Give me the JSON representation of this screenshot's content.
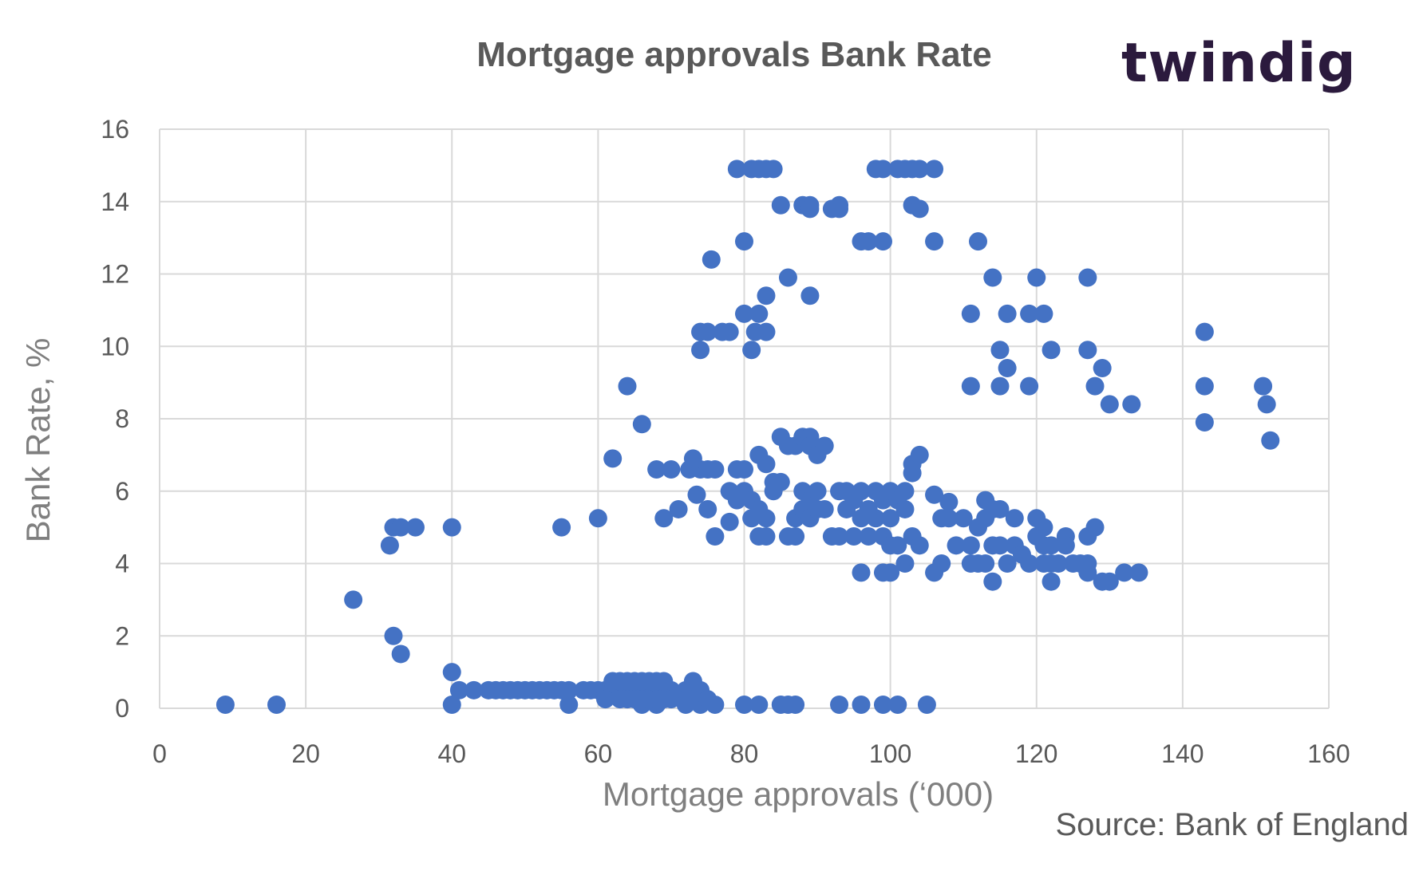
{
  "logo": {
    "text": "twindig"
  },
  "source": "Source: Bank of England",
  "colors": {
    "points": "#4472c4",
    "grid": "#d9d9d9",
    "text": "#595959",
    "logo_accent": "#f0932b"
  },
  "chart_data": {
    "type": "scatter",
    "title": "Mortgage approvals Bank Rate",
    "xlabel": "Mortgage approvals (‘000)",
    "ylabel": "Bank Rate, %",
    "xlim": [
      0,
      160
    ],
    "ylim": [
      0,
      16
    ],
    "xticks": [
      0,
      20,
      40,
      60,
      80,
      100,
      120,
      140,
      160
    ],
    "yticks": [
      0,
      2,
      4,
      6,
      8,
      10,
      12,
      14,
      16
    ],
    "grid": true,
    "series": [
      {
        "points": [
          [
            9,
            0.1
          ],
          [
            16,
            0.1
          ],
          [
            40,
            0.1
          ],
          [
            56,
            0.1
          ],
          [
            66,
            0.1
          ],
          [
            68,
            0.1
          ],
          [
            72,
            0.1
          ],
          [
            74,
            0.1
          ],
          [
            76,
            0.1
          ],
          [
            80,
            0.1
          ],
          [
            82,
            0.1
          ],
          [
            85,
            0.1
          ],
          [
            86,
            0.1
          ],
          [
            87,
            0.1
          ],
          [
            93,
            0.1
          ],
          [
            96,
            0.1
          ],
          [
            99,
            0.1
          ],
          [
            101,
            0.1
          ],
          [
            105,
            0.1
          ],
          [
            40,
            1
          ],
          [
            33,
            1.5
          ],
          [
            32,
            2
          ],
          [
            26.5,
            3
          ],
          [
            31.5,
            4.5
          ],
          [
            32,
            5
          ],
          [
            33,
            5
          ],
          [
            35,
            5
          ],
          [
            40,
            5
          ],
          [
            55,
            5
          ],
          [
            60,
            5.25
          ],
          [
            41,
            0.5
          ],
          [
            43,
            0.5
          ],
          [
            45,
            0.5
          ],
          [
            46,
            0.5
          ],
          [
            47,
            0.5
          ],
          [
            48,
            0.5
          ],
          [
            49,
            0.5
          ],
          [
            50,
            0.5
          ],
          [
            51,
            0.5
          ],
          [
            52,
            0.5
          ],
          [
            53,
            0.5
          ],
          [
            54,
            0.5
          ],
          [
            55,
            0.5
          ],
          [
            56,
            0.5
          ],
          [
            58,
            0.5
          ],
          [
            59,
            0.5
          ],
          [
            60,
            0.5
          ],
          [
            61,
            0.5
          ],
          [
            62,
            0.5
          ],
          [
            63,
            0.5
          ],
          [
            64,
            0.5
          ],
          [
            65,
            0.5
          ],
          [
            66,
            0.5
          ],
          [
            67,
            0.5
          ],
          [
            68,
            0.5
          ],
          [
            69,
            0.5
          ],
          [
            70,
            0.5
          ],
          [
            72,
            0.5
          ],
          [
            74,
            0.5
          ],
          [
            62,
            0.75
          ],
          [
            63,
            0.75
          ],
          [
            64,
            0.75
          ],
          [
            65,
            0.75
          ],
          [
            66,
            0.75
          ],
          [
            67,
            0.75
          ],
          [
            68,
            0.75
          ],
          [
            69,
            0.75
          ],
          [
            73,
            0.75
          ],
          [
            61,
            0.25
          ],
          [
            63,
            0.25
          ],
          [
            64,
            0.25
          ],
          [
            65,
            0.25
          ],
          [
            66,
            0.25
          ],
          [
            67,
            0.25
          ],
          [
            68,
            0.25
          ],
          [
            69,
            0.25
          ],
          [
            70,
            0.25
          ],
          [
            72,
            0.25
          ],
          [
            74,
            0.25
          ],
          [
            75,
            0.25
          ],
          [
            64,
            8.9
          ],
          [
            66,
            7.85
          ],
          [
            62,
            6.9
          ],
          [
            68,
            6.6
          ],
          [
            70,
            6.6
          ],
          [
            72.5,
            6.6
          ],
          [
            73,
            6.9
          ],
          [
            74,
            6.6
          ],
          [
            75,
            6.6
          ],
          [
            76,
            6.6
          ],
          [
            71,
            5.5
          ],
          [
            69,
            5.25
          ],
          [
            73.5,
            5.9
          ],
          [
            75,
            5.5
          ],
          [
            76,
            4.75
          ],
          [
            78,
            5.15
          ],
          [
            78,
            6
          ],
          [
            79,
            5.75
          ],
          [
            79,
            6.6
          ],
          [
            80,
            6.6
          ],
          [
            80,
            6
          ],
          [
            81,
            5.75
          ],
          [
            81,
            5.25
          ],
          [
            82,
            4.75
          ],
          [
            82,
            5.5
          ],
          [
            82,
            7
          ],
          [
            83,
            6.75
          ],
          [
            83,
            4.75
          ],
          [
            83,
            5.25
          ],
          [
            84,
            6
          ],
          [
            84,
            6.25
          ],
          [
            85,
            6.25
          ],
          [
            86,
            4.75
          ],
          [
            87,
            4.75
          ],
          [
            87,
            5.25
          ],
          [
            88,
            5.5
          ],
          [
            88,
            6
          ],
          [
            89,
            5.75
          ],
          [
            89,
            5.25
          ],
          [
            90,
            5.5
          ],
          [
            90,
            6
          ],
          [
            91,
            5.5
          ],
          [
            92,
            4.75
          ],
          [
            93,
            4.75
          ],
          [
            93,
            6
          ],
          [
            94,
            5.5
          ],
          [
            94,
            6
          ],
          [
            95,
            4.75
          ],
          [
            95,
            5.75
          ],
          [
            96,
            6
          ],
          [
            96,
            5.25
          ],
          [
            97,
            4.75
          ],
          [
            97,
            5.5
          ],
          [
            98,
            6
          ],
          [
            98,
            5.25
          ],
          [
            99,
            4.75
          ],
          [
            99,
            5.75
          ],
          [
            100,
            6
          ],
          [
            100,
            5.25
          ],
          [
            100,
            4.5
          ],
          [
            101,
            4.5
          ],
          [
            101,
            5.75
          ],
          [
            102,
            6
          ],
          [
            102,
            5.5
          ],
          [
            103,
            6.5
          ],
          [
            103,
            6.75
          ],
          [
            103,
            4.75
          ],
          [
            104,
            7
          ],
          [
            104,
            4.5
          ],
          [
            102,
            4
          ],
          [
            106,
            5.9
          ],
          [
            107,
            5.25
          ],
          [
            108,
            5.25
          ],
          [
            108,
            5.7
          ],
          [
            110,
            5.25
          ],
          [
            109,
            4.5
          ],
          [
            111,
            4.5
          ],
          [
            112,
            5
          ],
          [
            113,
            5.25
          ],
          [
            113,
            5.75
          ],
          [
            114,
            5.5
          ],
          [
            115,
            5.5
          ],
          [
            111,
            4
          ],
          [
            112,
            4
          ],
          [
            113,
            4
          ],
          [
            114,
            4.5
          ],
          [
            115,
            4.5
          ],
          [
            116,
            4
          ],
          [
            117,
            5.25
          ],
          [
            117,
            4.5
          ],
          [
            118,
            4.25
          ],
          [
            119,
            4
          ],
          [
            120,
            5.25
          ],
          [
            120,
            4.75
          ],
          [
            121,
            4
          ],
          [
            121,
            4.5
          ],
          [
            122,
            4.5
          ],
          [
            121,
            5
          ],
          [
            122,
            4
          ],
          [
            123,
            4
          ],
          [
            124,
            4.75
          ],
          [
            124,
            4.5
          ],
          [
            125,
            4
          ],
          [
            126,
            4
          ],
          [
            127,
            4
          ],
          [
            127,
            4.75
          ],
          [
            128,
            5
          ],
          [
            96,
            3.75
          ],
          [
            99,
            3.75
          ],
          [
            100,
            3.75
          ],
          [
            106,
            3.75
          ],
          [
            107,
            4
          ],
          [
            114,
            3.5
          ],
          [
            122,
            3.5
          ],
          [
            127,
            3.75
          ],
          [
            129,
            3.5
          ],
          [
            130,
            3.5
          ],
          [
            132,
            3.75
          ],
          [
            134,
            3.75
          ],
          [
            85,
            7.5
          ],
          [
            86,
            7.25
          ],
          [
            87,
            7.25
          ],
          [
            88,
            7.5
          ],
          [
            89,
            7.5
          ],
          [
            89,
            7.25
          ],
          [
            90,
            7
          ],
          [
            91,
            7.25
          ],
          [
            74,
            10.4
          ],
          [
            75,
            10.4
          ],
          [
            77,
            10.4
          ],
          [
            78,
            10.4
          ],
          [
            74,
            9.9
          ],
          [
            75.5,
            12.4
          ],
          [
            80,
            10.9
          ],
          [
            81,
            9.9
          ],
          [
            81.5,
            10.4
          ],
          [
            82,
            10.9
          ],
          [
            83,
            10.4
          ],
          [
            83,
            11.4
          ],
          [
            86,
            11.9
          ],
          [
            89,
            11.4
          ],
          [
            80,
            12.9
          ],
          [
            79,
            14.9
          ],
          [
            81,
            14.9
          ],
          [
            82,
            14.9
          ],
          [
            83,
            14.9
          ],
          [
            84,
            14.9
          ],
          [
            85,
            13.9
          ],
          [
            88,
            13.9
          ],
          [
            89,
            13.9
          ],
          [
            89,
            13.8
          ],
          [
            92,
            13.8
          ],
          [
            93,
            13.9
          ],
          [
            93,
            13.8
          ],
          [
            96,
            12.9
          ],
          [
            97,
            12.9
          ],
          [
            99,
            12.9
          ],
          [
            98,
            14.9
          ],
          [
            99,
            14.9
          ],
          [
            101,
            14.9
          ],
          [
            102,
            14.9
          ],
          [
            103,
            14.9
          ],
          [
            104,
            14.9
          ],
          [
            106,
            14.9
          ],
          [
            103,
            13.9
          ],
          [
            104,
            13.8
          ],
          [
            106,
            12.9
          ],
          [
            112,
            12.9
          ],
          [
            114,
            11.9
          ],
          [
            120,
            11.9
          ],
          [
            127,
            11.9
          ],
          [
            111,
            10.9
          ],
          [
            116,
            10.9
          ],
          [
            119,
            10.9
          ],
          [
            121,
            10.9
          ],
          [
            115,
            9.9
          ],
          [
            116,
            9.4
          ],
          [
            122,
            9.9
          ],
          [
            127,
            9.9
          ],
          [
            111,
            8.9
          ],
          [
            115,
            8.9
          ],
          [
            119,
            8.9
          ],
          [
            128,
            8.9
          ],
          [
            129,
            9.4
          ],
          [
            130,
            8.4
          ],
          [
            133,
            8.4
          ],
          [
            143,
            10.4
          ],
          [
            143,
            8.9
          ],
          [
            143,
            7.9
          ],
          [
            151,
            8.9
          ],
          [
            151.5,
            8.4
          ],
          [
            152,
            7.4
          ]
        ]
      }
    ]
  }
}
